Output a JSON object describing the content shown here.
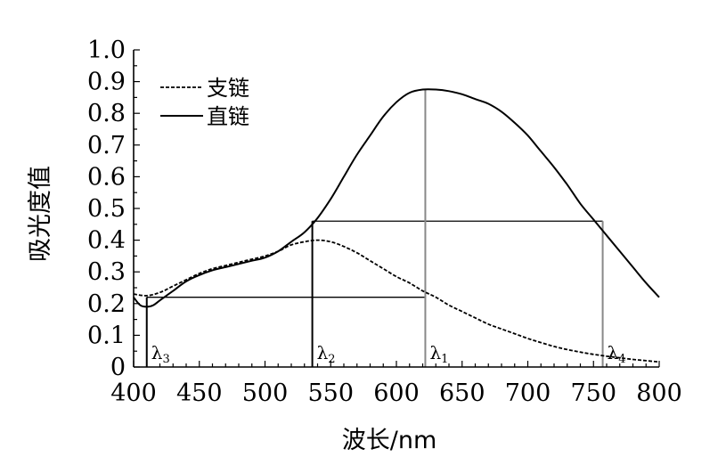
{
  "chart_data": {
    "type": "line",
    "title": "",
    "xlabel": "波长/nm",
    "ylabel": "吸光度值",
    "xlim": [
      400,
      800
    ],
    "ylim": [
      0,
      1.0
    ],
    "x_ticks": [
      "400",
      "450",
      "500",
      "550",
      "600",
      "650",
      "700",
      "750",
      "800"
    ],
    "y_ticks": [
      "0",
      "0.1",
      "0.2",
      "0.3",
      "0.4",
      "0.5",
      "0.6",
      "0.7",
      "0.8",
      "0.9",
      "1.0"
    ],
    "grid": false,
    "legend_position": "top-left",
    "series": [
      {
        "name": "支链",
        "style": "dashed",
        "color": "#000000",
        "points": [
          [
            400,
            0.23
          ],
          [
            410,
            0.225
          ],
          [
            420,
            0.235
          ],
          [
            430,
            0.255
          ],
          [
            440,
            0.275
          ],
          [
            450,
            0.295
          ],
          [
            460,
            0.31
          ],
          [
            470,
            0.32
          ],
          [
            480,
            0.33
          ],
          [
            490,
            0.34
          ],
          [
            500,
            0.35
          ],
          [
            510,
            0.365
          ],
          [
            520,
            0.385
          ],
          [
            530,
            0.395
          ],
          [
            540,
            0.4
          ],
          [
            550,
            0.395
          ],
          [
            560,
            0.38
          ],
          [
            570,
            0.36
          ],
          [
            580,
            0.335
          ],
          [
            590,
            0.31
          ],
          [
            600,
            0.285
          ],
          [
            610,
            0.265
          ],
          [
            620,
            0.24
          ],
          [
            630,
            0.22
          ],
          [
            640,
            0.195
          ],
          [
            650,
            0.175
          ],
          [
            660,
            0.155
          ],
          [
            670,
            0.135
          ],
          [
            680,
            0.12
          ],
          [
            690,
            0.105
          ],
          [
            700,
            0.09
          ],
          [
            710,
            0.077
          ],
          [
            720,
            0.065
          ],
          [
            730,
            0.055
          ],
          [
            740,
            0.047
          ],
          [
            750,
            0.04
          ],
          [
            760,
            0.034
          ],
          [
            770,
            0.029
          ],
          [
            780,
            0.024
          ],
          [
            790,
            0.02
          ],
          [
            800,
            0.016
          ]
        ]
      },
      {
        "name": "直链",
        "style": "solid",
        "color": "#000000",
        "points": [
          [
            400,
            0.22
          ],
          [
            405,
            0.195
          ],
          [
            410,
            0.19
          ],
          [
            415,
            0.195
          ],
          [
            420,
            0.21
          ],
          [
            430,
            0.24
          ],
          [
            440,
            0.27
          ],
          [
            450,
            0.29
          ],
          [
            460,
            0.305
          ],
          [
            470,
            0.315
          ],
          [
            480,
            0.325
          ],
          [
            490,
            0.335
          ],
          [
            500,
            0.345
          ],
          [
            510,
            0.365
          ],
          [
            520,
            0.395
          ],
          [
            530,
            0.425
          ],
          [
            540,
            0.47
          ],
          [
            550,
            0.53
          ],
          [
            560,
            0.6
          ],
          [
            570,
            0.67
          ],
          [
            580,
            0.73
          ],
          [
            590,
            0.79
          ],
          [
            600,
            0.835
          ],
          [
            610,
            0.865
          ],
          [
            620,
            0.875
          ],
          [
            630,
            0.875
          ],
          [
            640,
            0.87
          ],
          [
            650,
            0.86
          ],
          [
            660,
            0.845
          ],
          [
            670,
            0.83
          ],
          [
            680,
            0.805
          ],
          [
            690,
            0.77
          ],
          [
            700,
            0.73
          ],
          [
            710,
            0.68
          ],
          [
            720,
            0.63
          ],
          [
            730,
            0.575
          ],
          [
            740,
            0.515
          ],
          [
            750,
            0.465
          ],
          [
            760,
            0.415
          ],
          [
            770,
            0.365
          ],
          [
            780,
            0.315
          ],
          [
            790,
            0.265
          ],
          [
            800,
            0.22
          ]
        ]
      }
    ],
    "reference_lines": {
      "horizontal": [
        {
          "y": 0.22,
          "x_from": 410,
          "x_to": 622
        },
        {
          "y": 0.46,
          "x_from": 536,
          "x_to": 757
        }
      ],
      "vertical": [
        {
          "label": "λ",
          "sub": "3",
          "x": 410,
          "y_top": 0.22,
          "color": "#000000"
        },
        {
          "label": "λ",
          "sub": "2",
          "x": 536,
          "y_top": 0.46,
          "color": "#000000"
        },
        {
          "label": "λ",
          "sub": "1",
          "x": 622,
          "y_top": 0.875,
          "color": "#888888"
        },
        {
          "label": "λ",
          "sub": "4",
          "x": 757,
          "y_top": 0.46,
          "color": "#888888"
        }
      ]
    }
  }
}
